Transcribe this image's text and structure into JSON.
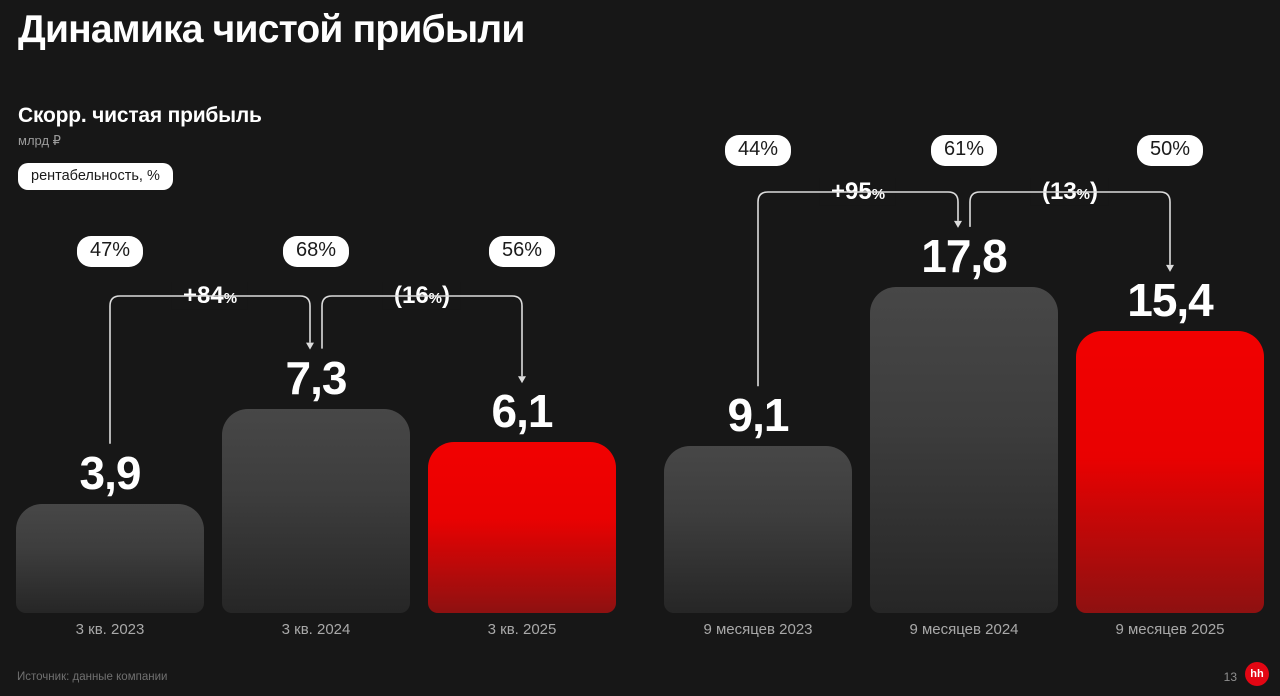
{
  "page": {
    "title": "Динамика чистой прибыли",
    "source": "Источник: данные компании",
    "page_number": "13",
    "logo_text": "hh"
  },
  "colors": {
    "background": "#171717",
    "bar_gray_top": "#474747",
    "bar_gray_bottom": "#262626",
    "bar_red_top": "#f10101",
    "bar_red_bottom": "#8e1111",
    "badge_background": "#ffffff",
    "badge_text": "#1b1b1b",
    "bracket_line": "#dcdcdc",
    "logo_red": "#e30613"
  },
  "chart_data": {
    "type": "bar",
    "title": "Скорр. чистая прибыль",
    "unit": "млрд ₽",
    "legend_badge": "рентабельность, %",
    "grid": false,
    "groups": [
      {
        "categories": [
          "3 кв. 2023",
          "3 кв. 2024",
          "3 кв. 2025"
        ],
        "values": [
          3.9,
          7.3,
          6.1
        ],
        "value_labels": [
          "3,9",
          "7,3",
          "6,1"
        ],
        "margin_badges": [
          "47%",
          "68%",
          "56%"
        ],
        "bar_styles": [
          "gray",
          "gray",
          "red"
        ],
        "changes": [
          {
            "label": "+84%",
            "prefix": "+84",
            "percent": "%",
            "suffix": ""
          },
          {
            "label": "(16%)",
            "prefix": "(16",
            "percent": "%",
            "suffix": ")"
          }
        ]
      },
      {
        "categories": [
          "9 месяцев 2023",
          "9 месяцев 2024",
          "9 месяцев 2025"
        ],
        "values": [
          9.1,
          17.8,
          15.4
        ],
        "value_labels": [
          "9,1",
          "17,8",
          "15,4"
        ],
        "margin_badges": [
          "44%",
          "61%",
          "50%"
        ],
        "bar_styles": [
          "gray",
          "gray",
          "red"
        ],
        "changes": [
          {
            "label": "+95%",
            "prefix": "+95",
            "percent": "%",
            "suffix": ""
          },
          {
            "label": "(13%)",
            "prefix": "(13",
            "percent": "%",
            "suffix": ")"
          }
        ]
      }
    ]
  }
}
